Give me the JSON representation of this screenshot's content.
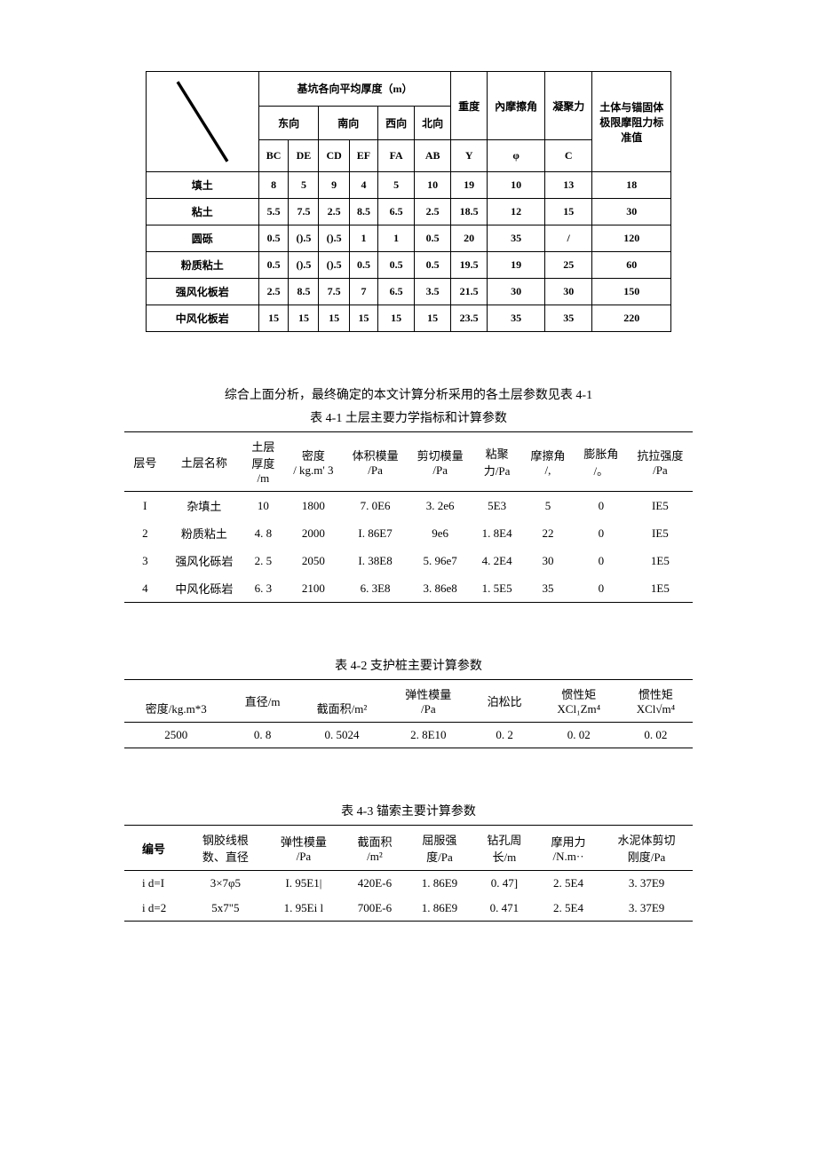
{
  "table0": {
    "header": {
      "thickness_group": "基坑各向平均厚度（m）",
      "weight": "重度",
      "friction": "內摩擦角",
      "cohesion": "凝聚力",
      "anchor_group_l1": "土体与锚固体",
      "anchor_group_l2": "极限摩阻力标",
      "anchor_group_l3": "准值",
      "east": "东向",
      "south": "南向",
      "west": "西向",
      "north": "北向",
      "Y": "Y",
      "phi": "φ",
      "C": "C",
      "BC": "BC",
      "DE": "DE",
      "CD": "CD",
      "EF": "EF",
      "FA": "FA",
      "AB": "AB"
    },
    "rows": [
      {
        "name": "填土",
        "bc": "8",
        "de": "5",
        "cd": "9",
        "ef": "4",
        "fa": "5",
        "ab": "10",
        "y": "19",
        "phi": "10",
        "c": "13",
        "anch": "18"
      },
      {
        "name": "粘土",
        "bc": "5.5",
        "de": "7.5",
        "cd": "2.5",
        "ef": "8.5",
        "fa": "6.5",
        "ab": "2.5",
        "y": "18.5",
        "phi": "12",
        "c": "15",
        "anch": "30"
      },
      {
        "name": "圆砾",
        "bc": "0.5",
        "de": "().5",
        "cd": "().5",
        "ef": "1",
        "fa": "1",
        "ab": "0.5",
        "y": "20",
        "phi": "35",
        "c": "/",
        "anch": "120"
      },
      {
        "name": "粉质粘土",
        "bc": "0.5",
        "de": "().5",
        "cd": "().5",
        "ef": "0.5",
        "fa": "0.5",
        "ab": "0.5",
        "y": "19.5",
        "phi": "19",
        "c": "25",
        "anch": "60"
      },
      {
        "name": "强风化板岩",
        "bc": "2.5",
        "de": "8.5",
        "cd": "7.5",
        "ef": "7",
        "fa": "6.5",
        "ab": "3.5",
        "y": "21.5",
        "phi": "30",
        "c": "30",
        "anch": "150"
      },
      {
        "name": "中风化板岩",
        "bc": "15",
        "de": "15",
        "cd": "15",
        "ef": "15",
        "fa": "15",
        "ab": "15",
        "y": "23.5",
        "phi": "35",
        "c": "35",
        "anch": "220"
      }
    ]
  },
  "intro_line": "综合上面分析，最终确定的本文计算分析采用的各土层参数见表 4-1",
  "table1": {
    "title": "表 4-1 土层主要力学指标和计算参数",
    "head": {
      "c1": "层号",
      "c2": "土层名称",
      "c3_l1": "土层",
      "c3_l2": "厚度",
      "c3_l3": "/m",
      "c4_l1": "密度",
      "c4_l2": "/ kg.m' 3",
      "c5_l1": "体积模量",
      "c5_l2": "/Pa",
      "c6_l1": "剪切模量",
      "c6_l2": "/Pa",
      "c7_l1": "粘聚",
      "c7_l2": "力/Pa",
      "c8_l1": "摩擦角",
      "c8_l2": "/,",
      "c9_l1": "膨胀角",
      "c9_l2": "/。",
      "c10_l1": "抗拉强度",
      "c10_l2": "/Pa"
    },
    "rows": [
      {
        "n": "I",
        "name": "杂填土",
        "th": "10",
        "den": "1800",
        "bulk": "7. 0E6",
        "shear": "3. 2e6",
        "coh": "5E3",
        "fric": "5",
        "dil": "0",
        "ten": "IE5"
      },
      {
        "n": "2",
        "name": "粉质粘土",
        "th": "4. 8",
        "den": "2000",
        "bulk": "I. 86E7",
        "shear": "9e6",
        "coh": "1. 8E4",
        "fric": "22",
        "dil": "0",
        "ten": "IE5"
      },
      {
        "n": "3",
        "name": "强风化砾岩",
        "th": "2. 5",
        "den": "2050",
        "bulk": "I. 38E8",
        "shear": "5. 96e7",
        "coh": "4. 2E4",
        "fric": "30",
        "dil": "0",
        "ten": "1E5"
      },
      {
        "n": "4",
        "name": "中风化砾岩",
        "th": "6. 3",
        "den": "2100",
        "bulk": "6. 3E8",
        "shear": "3. 86e8",
        "coh": "1. 5E5",
        "fric": "35",
        "dil": "0",
        "ten": "1E5"
      }
    ]
  },
  "table2": {
    "title": "表 4-2 支护桩主要计算参数",
    "head": {
      "c1_l1": "",
      "c1_l2": "密度/kg.m*3",
      "c2_l1": "直径/m",
      "c2_l2": "",
      "c3_l1": "",
      "c3_l2": "截面积/m²",
      "c4_l1": "弹性模量",
      "c4_l2": "/Pa",
      "c5_l1": "泊松比",
      "c5_l2": "",
      "c6_l1": "惯性矩",
      "c6_l2": "XCl₁Zm⁴",
      "c7_l1": "惯性矩",
      "c7_l2": "XCl√m⁴"
    },
    "row": {
      "den": "2500",
      "dia": "0. 8",
      "area": "0. 5024",
      "emod": "2. 8E10",
      "pois": "0. 2",
      "i1": "0. 02",
      "i2": "0. 02"
    }
  },
  "table3": {
    "title": "表 4-3 锚索主要计算参数",
    "head": {
      "c1": "编号",
      "c2_l1": "钢胶线根",
      "c2_l2": "数、直径",
      "c3_l1": "弹性模量",
      "c3_l2": "/Pa",
      "c4_l1": "截面积",
      "c4_l2": "/m²",
      "c5_l1": "屈服强",
      "c5_l2": "度/Pa",
      "c6_l1": "钻孔周",
      "c6_l2": "长/m",
      "c7_l1": "摩用力",
      "c7_l2": "/N.m··",
      "c8_l1": "水泥体剪切",
      "c8_l2": "刚度/Pa"
    },
    "rows": [
      {
        "id": "i d=I",
        "spec": "3×7φ5",
        "emod": "I. 95E1|",
        "area": "420E-6",
        "yield": "1. 86E9",
        "peri": "0. 47]",
        "fric": "2. 5E4",
        "stiff": "3. 37E9"
      },
      {
        "id": "i d=2",
        "spec": "5x7\"5",
        "emod": "1. 95Ei l",
        "area": "700E-6",
        "yield": "1. 86E9",
        "peri": "0. 471",
        "fric": "2. 5E4",
        "stiff": "3. 37E9"
      }
    ]
  }
}
